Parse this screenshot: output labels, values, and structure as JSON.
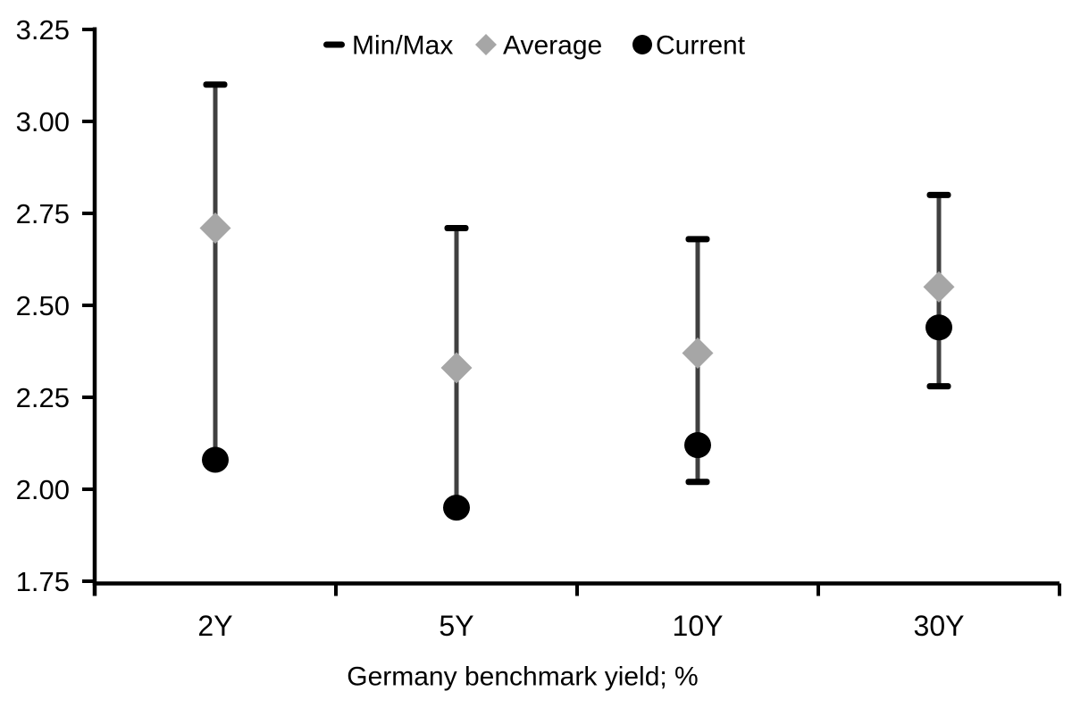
{
  "chart_data": {
    "type": "scatter",
    "title": "",
    "xlabel": "Germany benchmark yield; %",
    "ylabel": "",
    "ylim": [
      1.75,
      3.25
    ],
    "ytick_step": 0.25,
    "yticks": [
      "3.25",
      "3.00",
      "2.75",
      "2.50",
      "2.25",
      "2.00",
      "1.75"
    ],
    "categories": [
      "2Y",
      "5Y",
      "10Y",
      "30Y"
    ],
    "grid": false,
    "legend_position": "top-center",
    "series": [
      {
        "name": "Min/Max",
        "type": "range",
        "marker": "dash",
        "min": [
          2.08,
          1.95,
          2.02,
          2.28
        ],
        "max": [
          3.1,
          2.71,
          2.68,
          2.8
        ]
      },
      {
        "name": "Average",
        "type": "point",
        "marker": "diamond",
        "values": [
          2.71,
          2.33,
          2.37,
          2.55
        ]
      },
      {
        "name": "Current",
        "type": "point",
        "marker": "circle",
        "values": [
          2.08,
          1.95,
          2.12,
          2.44
        ]
      }
    ],
    "colors": {
      "minmax": "#000000",
      "whisker": "#404040",
      "average": "#a6a6a6",
      "current": "#000000",
      "axis": "#000000",
      "text": "#000000",
      "background": "#ffffff"
    }
  }
}
